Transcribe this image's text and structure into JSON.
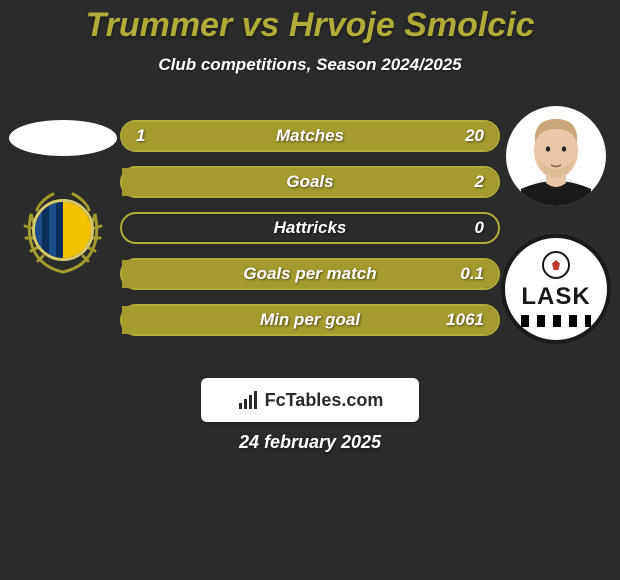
{
  "background_color": "#2b2b2b",
  "title": {
    "text": "Trummer vs Hrvoje Smolcic",
    "color": "#b1ab38",
    "fontsize": 34
  },
  "subtitle": {
    "text": "Club competitions, Season 2024/2025",
    "color": "#ffffff",
    "fontsize": 17
  },
  "stats": {
    "bar_border_color": "#b1ab38",
    "bar_bg_color": "rgba(0,0,0,0)",
    "fill_left_color": "#a39b2e",
    "fill_right_color": "#a39b2e",
    "rows": [
      {
        "label": "Matches",
        "left": "1",
        "right": "20",
        "left_pct": 5,
        "right_pct": 95
      },
      {
        "label": "Goals",
        "left": "",
        "right": "2",
        "left_pct": 0,
        "right_pct": 100
      },
      {
        "label": "Hattricks",
        "left": "",
        "right": "0",
        "left_pct": 0,
        "right_pct": 0
      },
      {
        "label": "Goals per match",
        "left": "",
        "right": "0.1",
        "left_pct": 0,
        "right_pct": 100
      },
      {
        "label": "Min per goal",
        "left": "",
        "right": "1061",
        "left_pct": 0,
        "right_pct": 100
      }
    ]
  },
  "left_player": {
    "portrait_bg": "#ffffff",
    "club_wreath_color": "#a39b2e",
    "club_inner_border": "#d6c96a"
  },
  "right_player": {
    "portrait_bg": "#ffffff",
    "skin": "#e8c8a8",
    "hair": "#c8a878",
    "shirt": "#1a1a1a",
    "club_bg": "#ffffff",
    "club_border": "#1a1a1a",
    "club_text": "LASK",
    "club_text_color": "#1a1a1a"
  },
  "watermark": {
    "bg": "#ffffff",
    "icon_color": "#2b2b2b",
    "text": "FcTables.com"
  },
  "date": "24 february 2025"
}
